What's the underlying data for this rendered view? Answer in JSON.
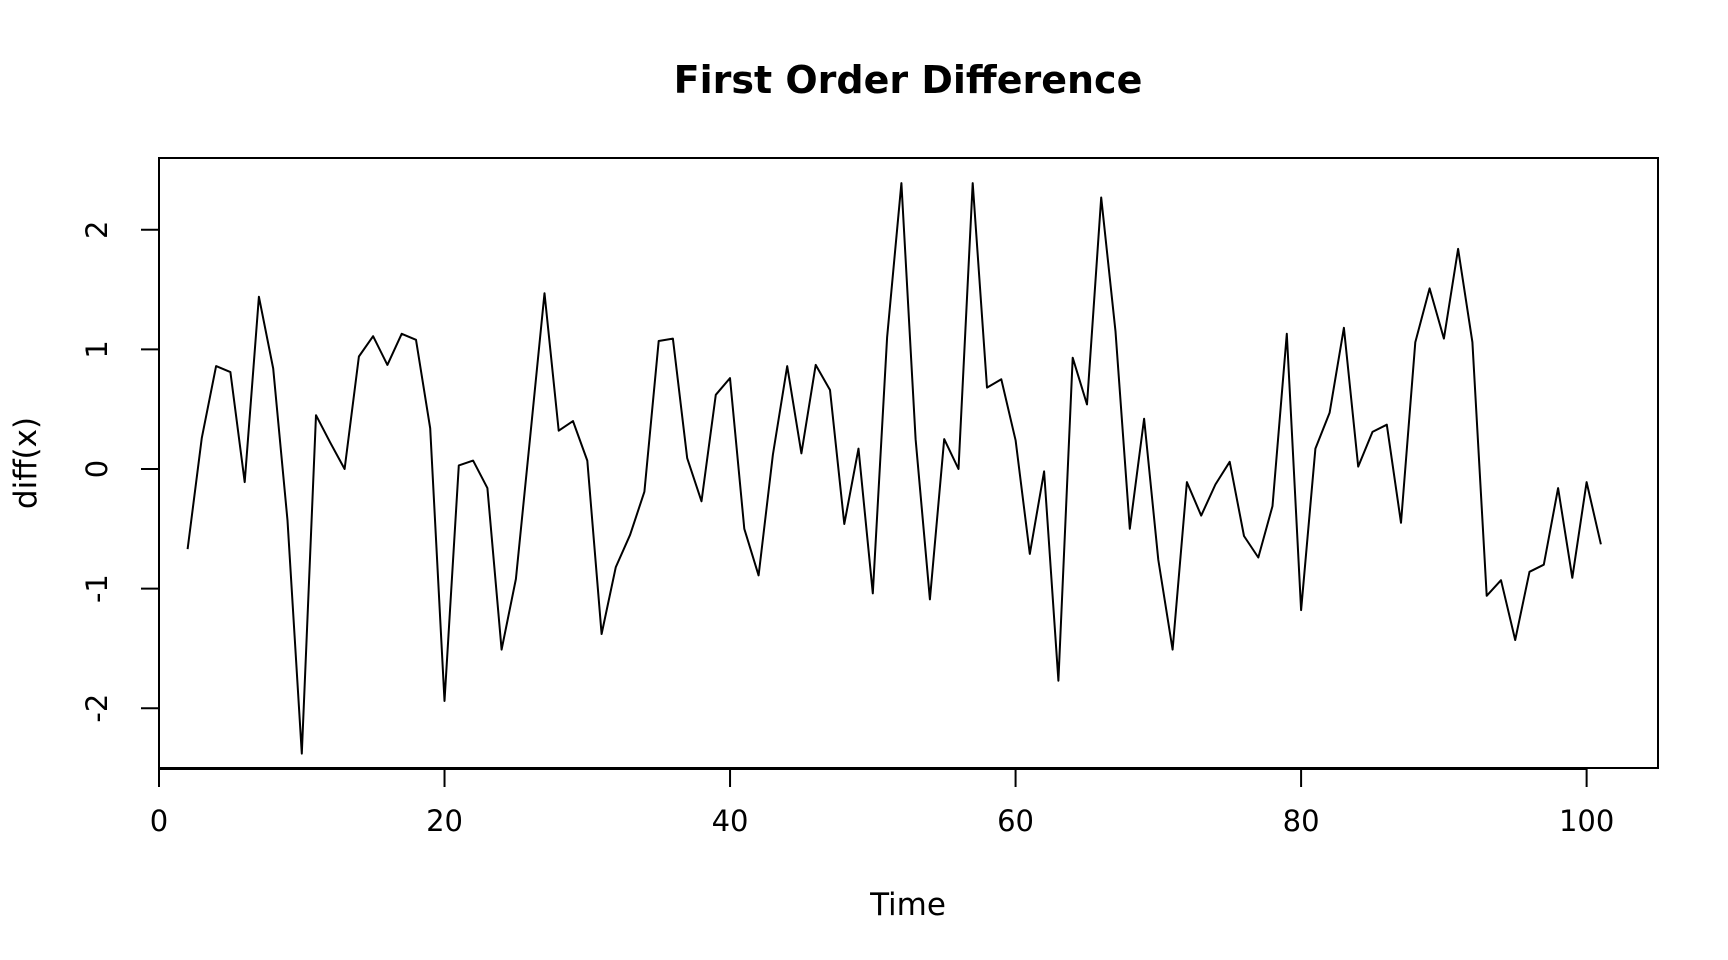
{
  "chart_data": {
    "type": "line",
    "title": "First Order Difference",
    "xlabel": "Time",
    "ylabel": "diff(x)",
    "xlim": [
      0,
      105
    ],
    "ylim": [
      -2.5,
      2.6
    ],
    "xticks": [
      0,
      20,
      40,
      60,
      80,
      100
    ],
    "xtick_labels": [
      "0",
      "20",
      "40",
      "60",
      "80",
      "100"
    ],
    "yticks": [
      -2,
      -1,
      0,
      1,
      2
    ],
    "ytick_labels": [
      "-2",
      "-1",
      "0",
      "1",
      "2"
    ],
    "grid": false,
    "legend": "none",
    "series": [
      {
        "x": [
          2,
          3,
          4,
          5,
          6,
          7,
          8,
          9,
          10,
          11,
          12,
          13,
          14,
          15,
          16,
          17,
          18,
          19,
          20,
          21,
          22,
          23,
          24,
          25,
          26,
          27,
          28,
          29,
          30,
          31,
          32,
          33,
          34,
          35,
          36,
          37,
          38,
          39,
          40,
          41,
          42,
          43,
          44,
          45,
          46,
          47,
          48,
          49,
          50,
          51,
          52,
          53,
          54,
          55,
          56,
          57,
          58,
          59,
          60,
          61,
          62,
          63,
          64,
          65,
          66,
          67,
          68,
          69,
          70,
          71,
          72,
          73,
          74,
          75,
          76,
          77,
          78,
          79,
          80,
          81,
          82,
          83,
          84,
          85,
          86,
          87,
          88,
          89,
          90,
          91,
          92,
          93,
          94,
          95,
          96,
          97,
          98,
          99,
          100,
          101
        ],
        "values": [
          -0.67,
          0.26,
          0.86,
          0.81,
          -0.11,
          1.44,
          0.84,
          -0.43,
          -2.38,
          0.45,
          0.22,
          0.0,
          0.94,
          1.11,
          0.87,
          1.13,
          1.08,
          0.34,
          -1.94,
          0.03,
          0.07,
          -0.16,
          -1.51,
          -0.92,
          0.27,
          1.47,
          0.32,
          0.4,
          0.07,
          -1.38,
          -0.82,
          -0.55,
          -0.19,
          1.07,
          1.09,
          0.09,
          -0.27,
          0.62,
          0.76,
          -0.5,
          -0.89,
          0.12,
          0.86,
          0.13,
          0.87,
          0.66,
          -0.46,
          0.17,
          -1.04,
          1.1,
          2.39,
          0.25,
          -1.09,
          0.25,
          0.0,
          2.39,
          0.68,
          0.75,
          0.24,
          -0.71,
          -0.02,
          -1.77,
          0.93,
          0.54,
          2.27,
          1.15,
          -0.5,
          0.42,
          -0.76,
          -1.51,
          -0.11,
          -0.39,
          -0.13,
          0.06,
          -0.56,
          -0.74,
          -0.31,
          1.13,
          -1.18,
          0.17,
          0.47,
          1.18,
          0.02,
          0.31,
          0.37,
          -0.45,
          1.06,
          1.51,
          1.09,
          1.84,
          1.06,
          -1.06,
          -0.93,
          -1.43,
          -0.86,
          -0.8,
          -0.16,
          -0.91,
          -0.11,
          -0.63
        ]
      }
    ]
  }
}
